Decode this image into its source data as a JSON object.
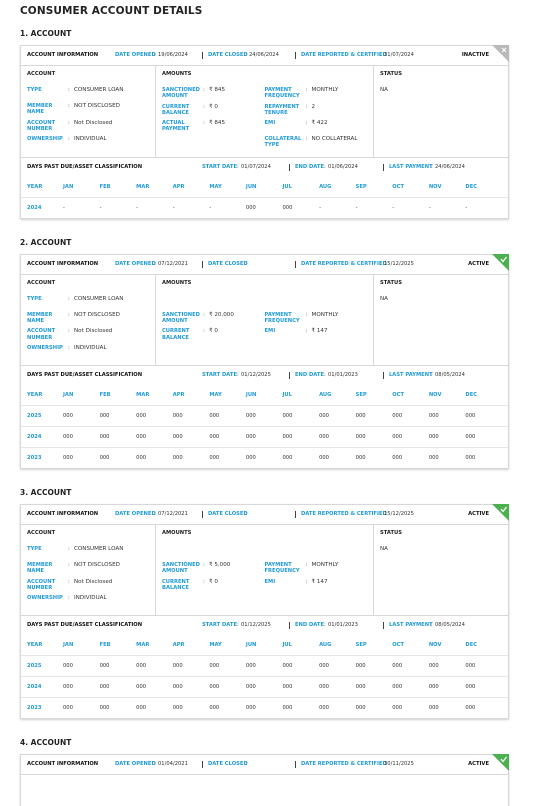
{
  "title": "CONSUMER ACCOUNT DETAILS",
  "labels": {
    "account_information": "ACCOUNT INFORMATION",
    "date_opened": "DATE OPENED",
    "date_closed": "DATE CLOSED",
    "date_reported": "DATE REPORTED & CERTIFIED",
    "account": "ACCOUNT",
    "amounts": "AMOUNTS",
    "status": "STATUS",
    "dpd": "DAYS PAST DUE/ASSET CLASSIFICATION",
    "start_date": "START DATE",
    "end_date": "END DATE",
    "last_payment": "LAST PAYMENT",
    "colon": ":",
    "months": [
      "YEAR",
      "JAN",
      "FEB",
      "MAR",
      "APR",
      "MAY",
      "JUN",
      "JUL",
      "AUG",
      "SEP",
      "OCT",
      "NOV",
      "DEC"
    ]
  },
  "accounts": [
    {
      "heading": "1. ACCOUNT",
      "status": "INACTIVE",
      "badge_color": "#b9b9b9",
      "badge_icon": "cross",
      "date_opened": "19/06/2024",
      "date_closed": "24/06/2024",
      "date_reported": "31/07/2024",
      "account_fields": [
        {
          "label": "TYPE",
          "value": "CONSUMER LOAN"
        },
        {
          "label": "MEMBER NAME",
          "value": "NOT DISCLOSED"
        },
        {
          "label": "ACCOUNT NUMBER",
          "value": "Not Disclosed"
        },
        {
          "label": "OWNERSHIP",
          "value": "INDIVIDUAL"
        }
      ],
      "amounts_left": [
        {
          "label": "SANCTIONED AMOUNT",
          "value": "₹ 845"
        },
        {
          "label": "CURRENT BALANCE",
          "value": "₹ 0"
        },
        {
          "label": "ACTUAL PAYMENT",
          "value": "₹ 845"
        }
      ],
      "amounts_right": [
        {
          "label": "PAYMENT FREQUENCY",
          "value": "MONTHLY"
        },
        {
          "label": "REPAYMENT TENURE",
          "value": "2"
        },
        {
          "label": "EMI",
          "value": "₹ 422"
        },
        {
          "label": "COLLATERAL TYPE",
          "value": "NO COLLATERAL"
        }
      ],
      "status_value": "NA",
      "dpd": {
        "start_date": "01/07/2024",
        "end_date": "01/06/2024",
        "last_payment": "24/06/2024",
        "rows": [
          [
            "2024",
            "-",
            "-",
            "-",
            "-",
            "-",
            "000",
            "000",
            "-",
            "-",
            "-",
            "-",
            "-"
          ]
        ]
      }
    },
    {
      "heading": "2. ACCOUNT",
      "status": "ACTIVE",
      "badge_color": "#4caf50",
      "badge_icon": "check",
      "date_opened": "07/12/2021",
      "date_reported": "15/12/2025",
      "account_fields": [
        {
          "label": "TYPE",
          "value": "CONSUMER LOAN"
        },
        {
          "label": "MEMBER NAME",
          "value": "NOT DISCLOSED"
        },
        {
          "label": "ACCOUNT NUMBER",
          "value": "Not Disclosed"
        },
        {
          "label": "OWNERSHIP",
          "value": "INDIVIDUAL"
        }
      ],
      "amounts_left": [
        {
          "label": "SANCTIONED AMOUNT",
          "value": "₹ 20,000"
        },
        {
          "label": "CURRENT BALANCE",
          "value": "₹ 0"
        }
      ],
      "amounts_right": [
        {
          "label": "PAYMENT FREQUENCY",
          "value": "MONTHLY"
        },
        {
          "label": "EMI",
          "value": "₹ 147"
        }
      ],
      "status_value": "NA",
      "dpd": {
        "start_date": "01/12/2025",
        "end_date": "01/01/2023",
        "last_payment": "08/05/2024",
        "rows": [
          [
            "2025",
            "000",
            "000",
            "000",
            "000",
            "000",
            "000",
            "000",
            "000",
            "000",
            "000",
            "000",
            "000"
          ],
          [
            "2024",
            "000",
            "000",
            "000",
            "000",
            "000",
            "000",
            "000",
            "000",
            "000",
            "000",
            "000",
            "000"
          ],
          [
            "2023",
            "000",
            "000",
            "000",
            "000",
            "000",
            "000",
            "000",
            "000",
            "000",
            "000",
            "000",
            "000"
          ]
        ]
      }
    },
    {
      "heading": "3. ACCOUNT",
      "status": "ACTIVE",
      "badge_color": "#4caf50",
      "badge_icon": "check",
      "date_opened": "07/12/2021",
      "date_reported": "15/12/2025",
      "account_fields": [
        {
          "label": "TYPE",
          "value": "CONSUMER LOAN"
        },
        {
          "label": "MEMBER NAME",
          "value": "NOT DISCLOSED"
        },
        {
          "label": "ACCOUNT NUMBER",
          "value": "Not Disclosed"
        },
        {
          "label": "OWNERSHIP",
          "value": "INDIVIDUAL"
        }
      ],
      "amounts_left": [
        {
          "label": "SANCTIONED AMOUNT",
          "value": "₹ 5,000"
        },
        {
          "label": "CURRENT BALANCE",
          "value": "₹ 0"
        }
      ],
      "amounts_right": [
        {
          "label": "PAYMENT FREQUENCY",
          "value": "MONTHLY"
        },
        {
          "label": "EMI",
          "value": "₹ 147"
        }
      ],
      "status_value": "NA",
      "dpd": {
        "start_date": "01/12/2025",
        "end_date": "01/01/2023",
        "last_payment": "08/05/2024",
        "rows": [
          [
            "2025",
            "000",
            "000",
            "000",
            "000",
            "000",
            "000",
            "000",
            "000",
            "000",
            "000",
            "000",
            "000"
          ],
          [
            "2024",
            "000",
            "000",
            "000",
            "000",
            "000",
            "000",
            "000",
            "000",
            "000",
            "000",
            "000",
            "000"
          ],
          [
            "2023",
            "000",
            "000",
            "000",
            "000",
            "000",
            "000",
            "000",
            "000",
            "000",
            "000",
            "000",
            "000"
          ]
        ]
      }
    },
    {
      "heading": "4. ACCOUNT",
      "status": "ACTIVE",
      "badge_color": "#4caf50",
      "badge_icon": "check",
      "date_opened": "01/04/2021",
      "date_reported": "30/11/2025"
    }
  ]
}
